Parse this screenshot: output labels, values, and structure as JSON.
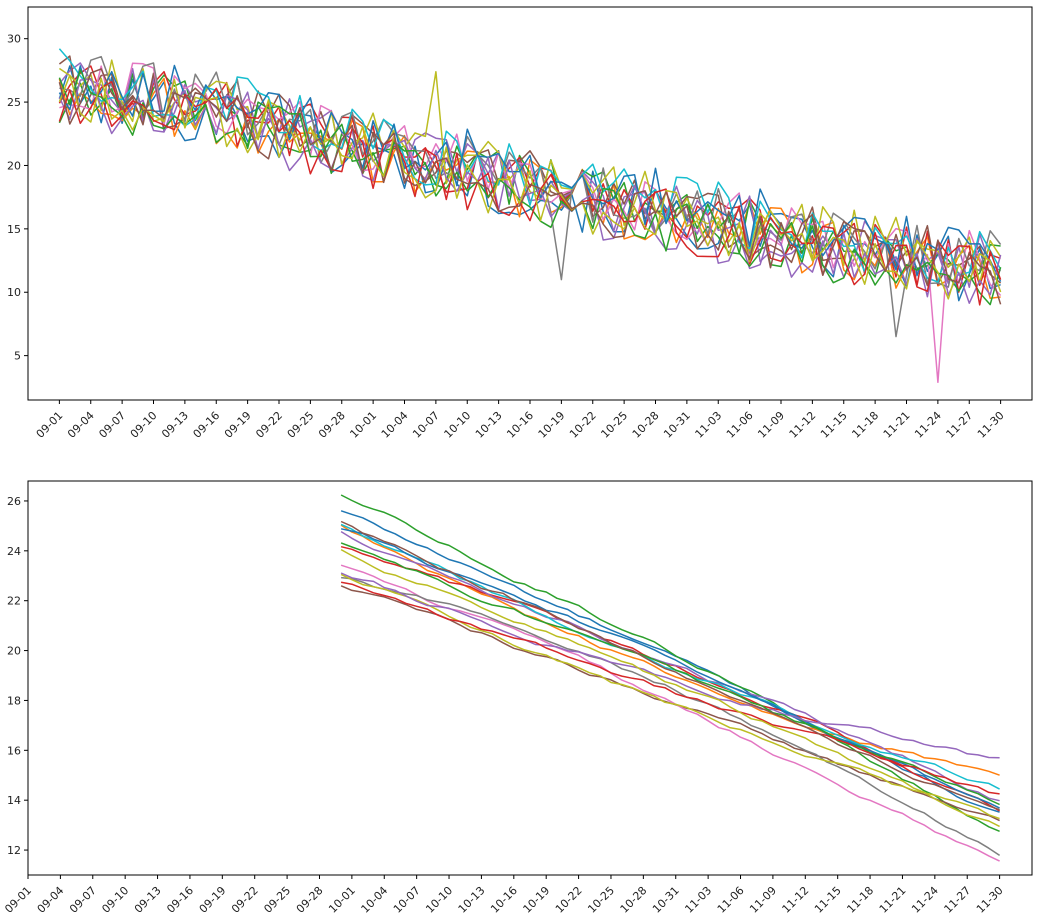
{
  "chart_data": [
    {
      "type": "line",
      "title": "",
      "xlabel": "",
      "ylabel": "",
      "x_start": "09-01",
      "x_end": "11-30",
      "xtick_labels": [
        "09-01",
        "09-04",
        "09-07",
        "09-10",
        "09-13",
        "09-16",
        "09-19",
        "09-22",
        "09-25",
        "09-28",
        "10-01",
        "10-04",
        "10-07",
        "10-10",
        "10-13",
        "10-16",
        "10-19",
        "10-22",
        "10-25",
        "10-28",
        "10-31",
        "11-03",
        "11-06",
        "11-09",
        "11-12",
        "11-15",
        "11-18",
        "11-21",
        "11-24",
        "11-27",
        "11-30"
      ],
      "ytick_labels": [
        "5",
        "10",
        "15",
        "20",
        "25",
        "30"
      ],
      "ylim": [
        1.5,
        32.5
      ],
      "xlim": [
        "08-29",
        "12-03"
      ],
      "grid": false,
      "legend": "none",
      "trend": [
        {
          "x": "09-01",
          "y": 26.0
        },
        {
          "x": "09-16",
          "y": 24.5
        },
        {
          "x": "10-01",
          "y": 21.0
        },
        {
          "x": "10-16",
          "y": 18.5
        },
        {
          "x": "10-31",
          "y": 16.0
        },
        {
          "x": "11-15",
          "y": 13.5
        },
        {
          "x": "11-30",
          "y": 11.8
        }
      ],
      "series_count": 16,
      "outliers": [
        {
          "x": "10-07",
          "y": 27.4
        },
        {
          "x": "10-19",
          "y": 11.0
        },
        {
          "x": "11-20",
          "y": 6.5
        },
        {
          "x": "11-24",
          "y": 2.9
        }
      ],
      "noise_amplitude": 2.5
    },
    {
      "type": "line",
      "title": "",
      "xlabel": "",
      "ylabel": "",
      "x_start": "09-30",
      "x_end": "11-30",
      "xtick_labels": [
        "09-01",
        "09-04",
        "09-07",
        "09-10",
        "09-13",
        "09-16",
        "09-19",
        "09-22",
        "09-25",
        "09-28",
        "10-01",
        "10-04",
        "10-07",
        "10-10",
        "10-13",
        "10-16",
        "10-19",
        "10-22",
        "10-25",
        "10-28",
        "10-31",
        "11-03",
        "11-06",
        "11-09",
        "11-12",
        "11-15",
        "11-18",
        "11-21",
        "11-24",
        "11-27",
        "11-30"
      ],
      "ytick_labels": [
        "12",
        "14",
        "16",
        "18",
        "20",
        "22",
        "24",
        "26"
      ],
      "ylim": [
        11.0,
        26.8
      ],
      "xlim": [
        "09-01",
        "12-03"
      ],
      "grid": false,
      "legend": "none",
      "series_start": [
        25.6,
        25.1,
        26.2,
        24.2,
        24.7,
        22.6,
        23.5,
        22.9,
        23.1,
        25.0,
        24.9,
        23.2,
        24.3,
        22.8,
        24.0,
        25.2
      ],
      "series_end": [
        13.4,
        14.9,
        12.7,
        13.6,
        14.1,
        13.2,
        11.4,
        11.9,
        13.1,
        14.5,
        13.6,
        15.6,
        13.8,
        14.2,
        13.0,
        13.5
      ],
      "series_curvature": [
        0.2,
        -0.9,
        0.5,
        0.6,
        0.1,
        0.0,
        0.4,
        1.1,
        -0.3,
        -0.5,
        0.3,
        -0.6,
        0.1,
        -0.2,
        0.2,
        0.0
      ]
    }
  ],
  "colors": [
    "#1f77b4",
    "#ff7f0e",
    "#2ca02c",
    "#d62728",
    "#9467bd",
    "#8c564b",
    "#e377c2",
    "#7f7f7f",
    "#bcbd22",
    "#17becf",
    "#1f77b4",
    "#9467bd",
    "#2ca02c",
    "#d62728",
    "#bcbd22",
    "#8c564b"
  ]
}
